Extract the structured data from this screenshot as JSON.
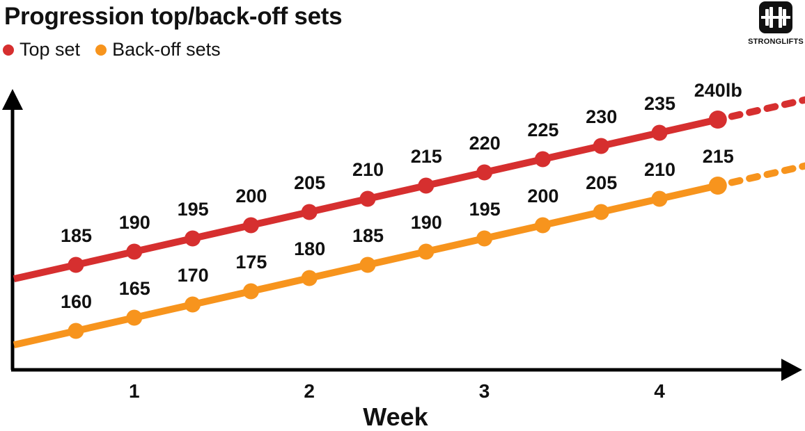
{
  "logo": {
    "text": "STRONGLIFTS",
    "icon": "barbell-icon"
  },
  "chart_data": {
    "type": "line",
    "title": "Progression top/back-off sets",
    "xlabel": "Week",
    "ylabel": "",
    "x_ticks": [
      "1",
      "2",
      "3",
      "4"
    ],
    "legend_position": "top-left",
    "grid": false,
    "series": [
      {
        "name": "Top set",
        "color": "#d62f2f",
        "values": [
          185,
          190,
          195,
          200,
          205,
          210,
          215,
          220,
          225,
          230,
          235,
          240
        ],
        "labels": [
          "185",
          "190",
          "195",
          "200",
          "205",
          "210",
          "215",
          "220",
          "225",
          "230",
          "235",
          "240lb"
        ]
      },
      {
        "name": "Back-off sets",
        "color": "#f7941d",
        "values": [
          160,
          165,
          170,
          175,
          180,
          185,
          190,
          195,
          200,
          205,
          210,
          215
        ],
        "labels": [
          "160",
          "165",
          "170",
          "175",
          "180",
          "185",
          "190",
          "195",
          "200",
          "205",
          "210",
          "215"
        ]
      }
    ]
  }
}
